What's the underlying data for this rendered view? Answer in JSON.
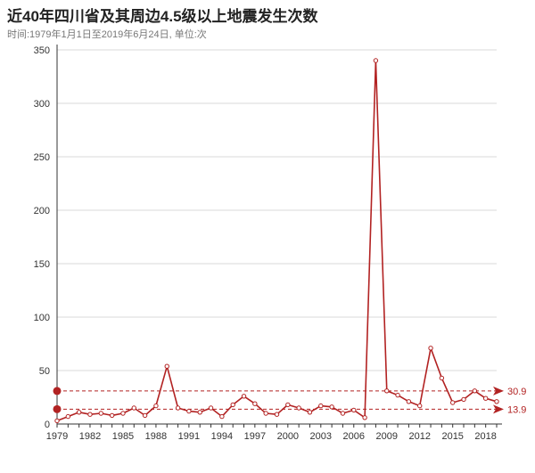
{
  "title": "近40年四川省及其周边4.5级以上地震发生次数",
  "subtitle": "时间:1979年1月1日至2019年6月24日, 单位:次",
  "colors": {
    "series": "#b22222",
    "grid": "#d9d9d9",
    "axis": "#333333"
  },
  "chart_data": {
    "type": "line",
    "title": "近40年四川省及其周边4.5级以上地震发生次数",
    "subtitle": "时间:1979年1月1日至2019年6月24日, 单位:次",
    "xlabel": "",
    "ylabel": "",
    "ylim": [
      0,
      350
    ],
    "yticks": [
      0,
      50,
      100,
      150,
      200,
      250,
      300,
      350
    ],
    "xticks": [
      1979,
      1982,
      1985,
      1988,
      1991,
      1994,
      1997,
      2000,
      2003,
      2006,
      2009,
      2012,
      2015,
      2018
    ],
    "grid": "horizontal",
    "x": [
      1979,
      1980,
      1981,
      1982,
      1983,
      1984,
      1985,
      1986,
      1987,
      1988,
      1989,
      1990,
      1991,
      1992,
      1993,
      1994,
      1995,
      1996,
      1997,
      1998,
      1999,
      2000,
      2001,
      2002,
      2003,
      2004,
      2005,
      2006,
      2007,
      2008,
      2009,
      2010,
      2011,
      2012,
      2013,
      2014,
      2015,
      2016,
      2017,
      2018,
      2019
    ],
    "series": [
      {
        "values": [
          3,
          7,
          11,
          9,
          10,
          8,
          10,
          15,
          8,
          17,
          54,
          15,
          12,
          11,
          15,
          7,
          18,
          26,
          19,
          10,
          9,
          18,
          15,
          11,
          17,
          16,
          10,
          13,
          6,
          340,
          31,
          27,
          21,
          17,
          71,
          43,
          20,
          23,
          31,
          24,
          21
        ]
      }
    ],
    "reference_lines": [
      {
        "value": 30.9,
        "label": "30.9"
      },
      {
        "value": 13.9,
        "label": "13.9"
      }
    ]
  }
}
